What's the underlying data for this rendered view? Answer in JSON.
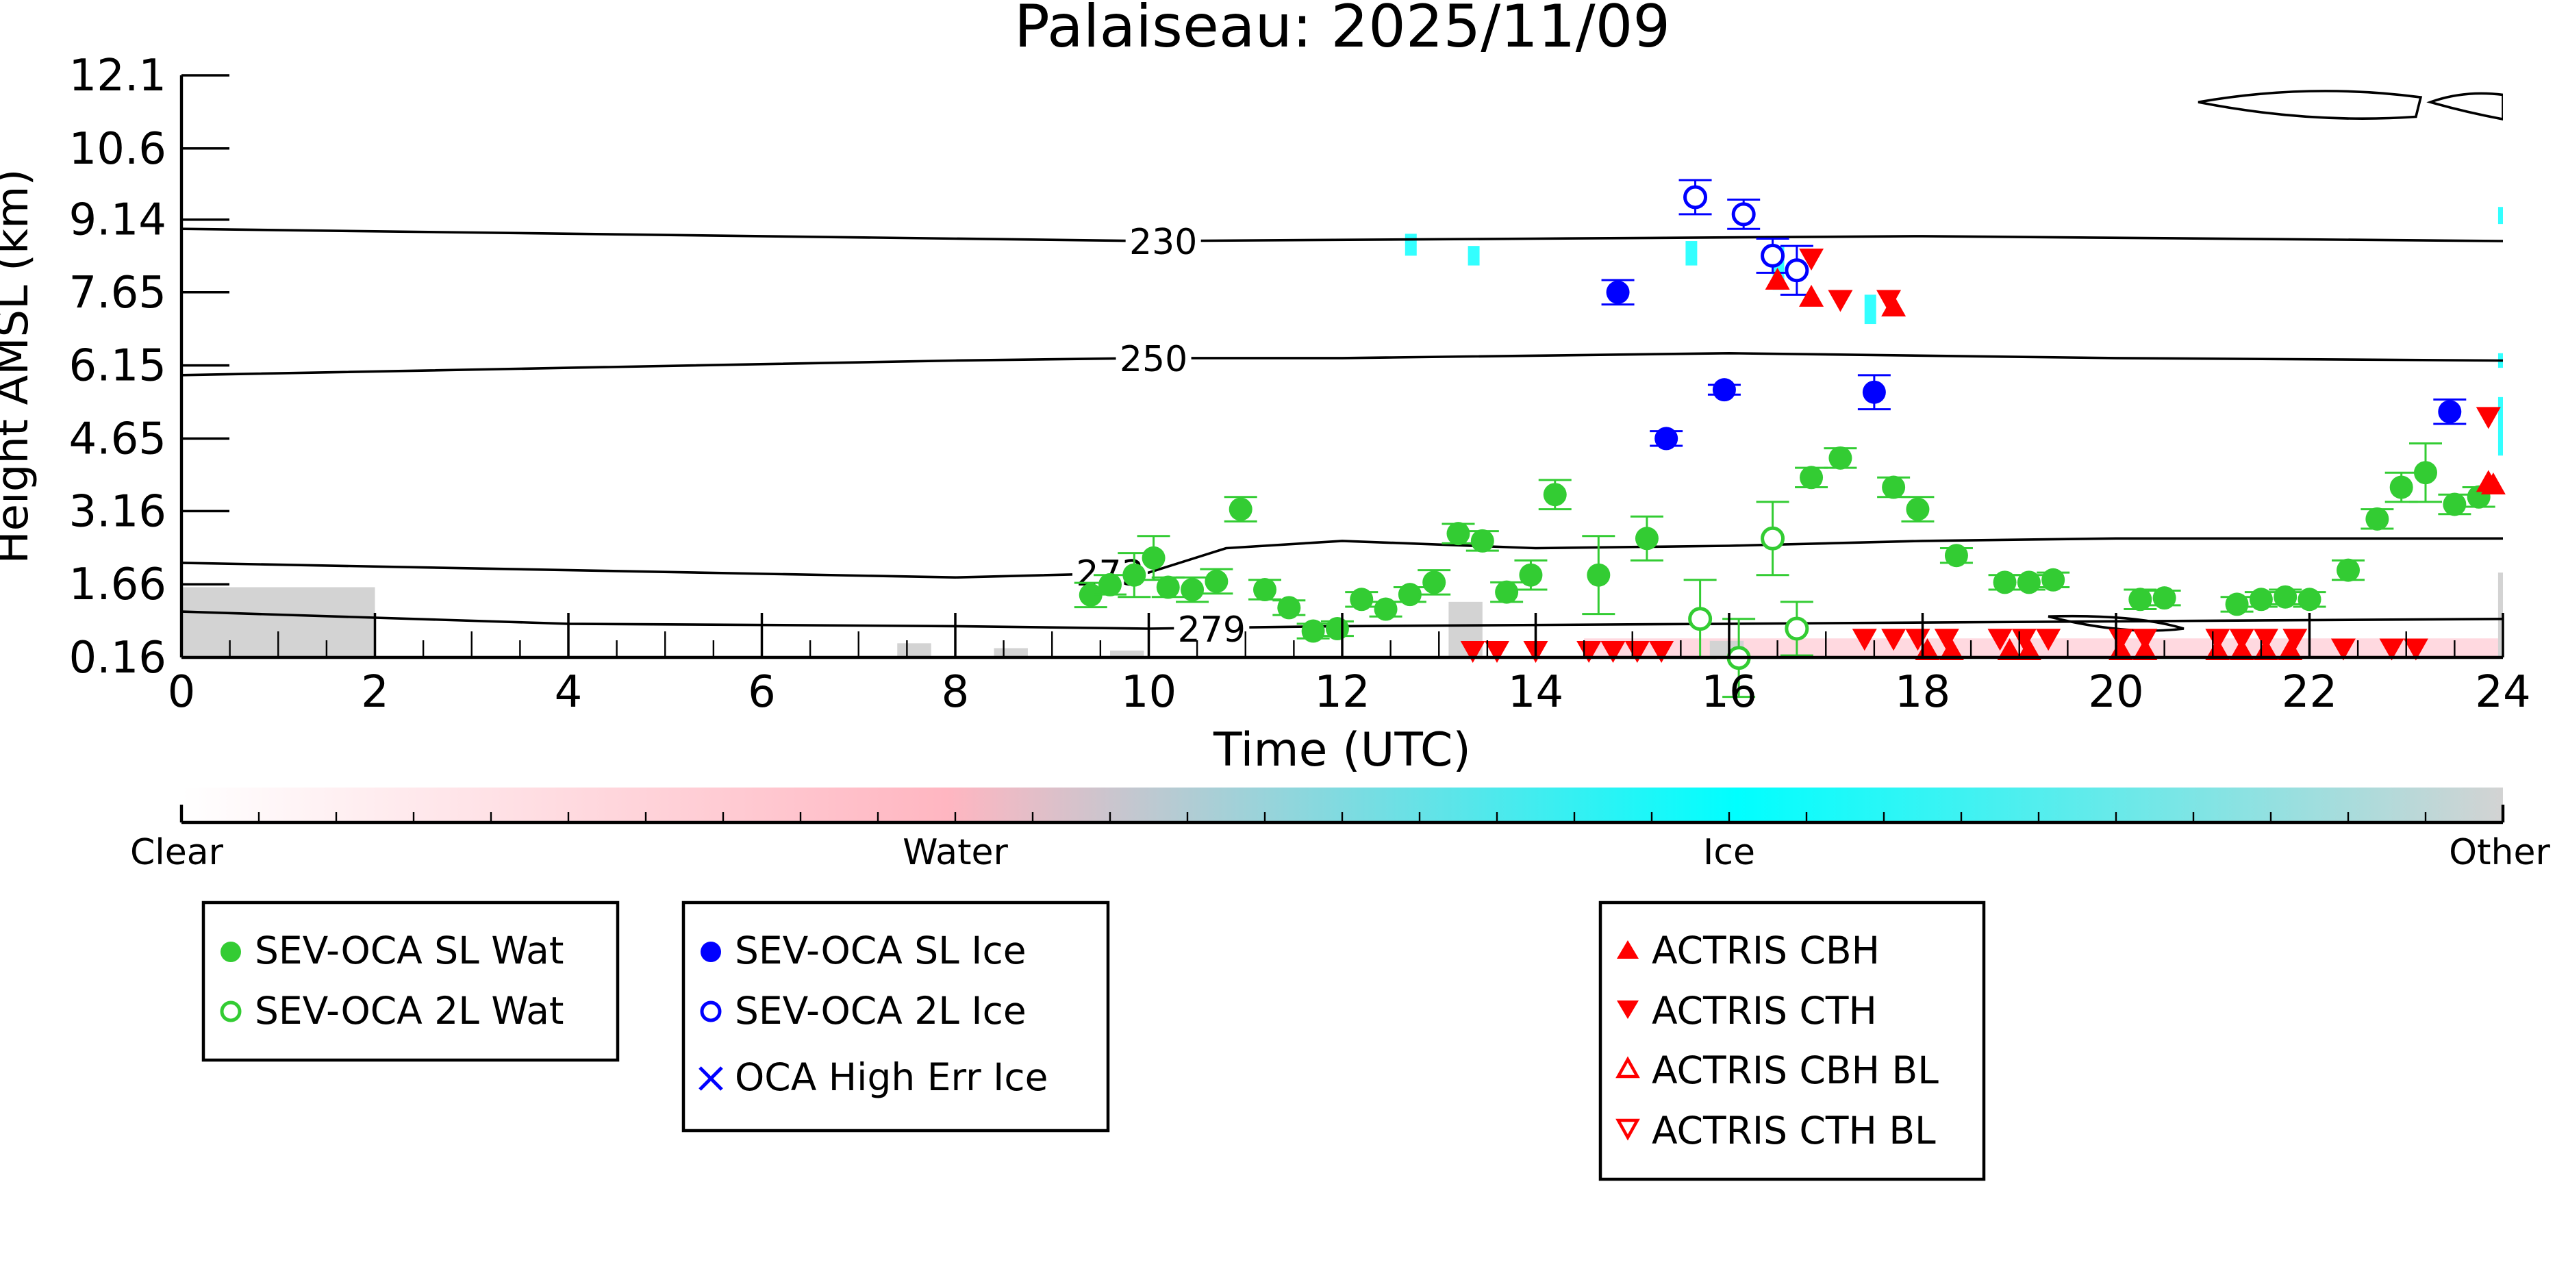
{
  "chart_data": {
    "type": "scatter",
    "title": "Palaiseau: 2025/11/09",
    "xlabel": "Time (UTC)",
    "ylabel": "Height AMSL (km)",
    "xlim": [
      0,
      24
    ],
    "ylim": [
      0.16,
      12.1
    ],
    "x_ticks": [
      "0",
      "2",
      "4",
      "6",
      "8",
      "10",
      "12",
      "14",
      "16",
      "18",
      "20",
      "22",
      "24"
    ],
    "y_ticks": [
      "0.16",
      "1.66",
      "3.16",
      "4.65",
      "6.15",
      "7.65",
      "9.14",
      "10.6",
      "12.1"
    ],
    "colorbar": {
      "labels": [
        "Clear",
        "Water",
        "Ice",
        "Other"
      ],
      "colors": [
        "#ffffff",
        "#ffb6c1",
        "#00ffff",
        "#d3d3d3"
      ]
    },
    "contour_labels": [
      "230",
      "250",
      "273",
      "279"
    ],
    "series": [
      {
        "name": "SEV-OCA SL Wat",
        "color": "#33cc33",
        "marker": "filled-circle",
        "points": [
          [
            9.4,
            1.44,
            0.25
          ],
          [
            9.6,
            1.65,
            0.2
          ],
          [
            9.85,
            1.85,
            0.45
          ],
          [
            10.05,
            2.2,
            0.45
          ],
          [
            10.2,
            1.6,
            0.2
          ],
          [
            10.45,
            1.55,
            0.25
          ],
          [
            10.7,
            1.72,
            0.25
          ],
          [
            10.95,
            3.2,
            0.25
          ],
          [
            11.2,
            1.55,
            0.2
          ],
          [
            11.45,
            1.18,
            0.15
          ],
          [
            11.7,
            0.7,
            0.15
          ],
          [
            11.95,
            0.75,
            0.15
          ],
          [
            12.2,
            1.35,
            0.15
          ],
          [
            12.45,
            1.15,
            0.15
          ],
          [
            12.7,
            1.45,
            0.15
          ],
          [
            12.95,
            1.7,
            0.25
          ],
          [
            13.2,
            2.7,
            0.2
          ],
          [
            13.45,
            2.55,
            0.2
          ],
          [
            13.7,
            1.5,
            0.2
          ],
          [
            13.95,
            1.85,
            0.3
          ],
          [
            14.2,
            3.5,
            0.3
          ],
          [
            14.65,
            1.85,
            0.8
          ],
          [
            15.15,
            2.6,
            0.45
          ],
          [
            16.85,
            3.85,
            0.2
          ],
          [
            17.15,
            4.25,
            0.2
          ],
          [
            17.7,
            3.65,
            0.2
          ],
          [
            17.95,
            3.2,
            0.25
          ],
          [
            18.35,
            2.25,
            0.15
          ],
          [
            18.85,
            1.7,
            0.15
          ],
          [
            19.1,
            1.7,
            0.15
          ],
          [
            19.35,
            1.75,
            0.15
          ],
          [
            20.25,
            1.35,
            0.2
          ],
          [
            20.5,
            1.38,
            0.15
          ],
          [
            21.25,
            1.25,
            0.15
          ],
          [
            21.5,
            1.35,
            0.15
          ],
          [
            21.75,
            1.4,
            0.15
          ],
          [
            22.0,
            1.35,
            0.15
          ],
          [
            22.4,
            1.95,
            0.2
          ],
          [
            22.7,
            3.0,
            0.2
          ],
          [
            22.95,
            3.65,
            0.3
          ],
          [
            23.2,
            3.95,
            0.6
          ],
          [
            23.5,
            3.3,
            0.2
          ],
          [
            23.75,
            3.45,
            0.2
          ]
        ]
      },
      {
        "name": "SEV-OCA 2L Wat",
        "color": "#33cc33",
        "marker": "open-circle",
        "points": [
          [
            15.7,
            0.95,
            0.8
          ],
          [
            16.1,
            0.15,
            0.8
          ],
          [
            16.45,
            2.6,
            0.75
          ],
          [
            16.7,
            0.75,
            0.55
          ]
        ]
      },
      {
        "name": "SEV-OCA SL Ice",
        "color": "#0000ff",
        "marker": "filled-circle",
        "points": [
          [
            14.85,
            7.65,
            0.25
          ],
          [
            15.35,
            4.65,
            0.15
          ],
          [
            15.95,
            5.65,
            0.1
          ],
          [
            17.5,
            5.6,
            0.35
          ],
          [
            23.45,
            5.2,
            0.25
          ]
        ]
      },
      {
        "name": "SEV-OCA 2L Ice",
        "color": "#0000ff",
        "marker": "open-circle",
        "points": [
          [
            15.65,
            9.6,
            0.35
          ],
          [
            16.15,
            9.25,
            0.3
          ],
          [
            16.45,
            8.4,
            0.35
          ],
          [
            16.7,
            8.1,
            0.5
          ]
        ]
      },
      {
        "name": "OCA High Err Ice",
        "color": "#0000ff",
        "marker": "x",
        "points": []
      },
      {
        "name": "ACTRIS CBH",
        "color": "#ff0000",
        "marker": "triangle-up",
        "points": [
          [
            16.5,
            7.9
          ],
          [
            16.85,
            7.55
          ],
          [
            23.9,
            3.7
          ],
          [
            17.7,
            7.35
          ],
          [
            18.05,
            0.3
          ],
          [
            18.3,
            0.3
          ],
          [
            18.9,
            0.3
          ],
          [
            19.1,
            0.3
          ],
          [
            20.05,
            0.3
          ],
          [
            20.3,
            0.3
          ],
          [
            21.05,
            0.3
          ],
          [
            21.3,
            0.3
          ],
          [
            21.55,
            0.3
          ],
          [
            21.8,
            0.3
          ],
          [
            23.85,
            3.75
          ]
        ]
      },
      {
        "name": "ACTRIS CTH",
        "color": "#ff0000",
        "marker": "triangle-down",
        "points": [
          [
            13.35,
            0.3
          ],
          [
            13.6,
            0.3
          ],
          [
            14.0,
            0.3
          ],
          [
            14.55,
            0.3
          ],
          [
            14.8,
            0.3
          ],
          [
            15.05,
            0.3
          ],
          [
            15.3,
            0.3
          ],
          [
            16.85,
            8.35
          ],
          [
            17.15,
            7.5
          ],
          [
            17.65,
            7.5
          ],
          [
            17.4,
            0.55
          ],
          [
            17.7,
            0.55
          ],
          [
            17.95,
            0.55
          ],
          [
            18.25,
            0.55
          ],
          [
            18.8,
            0.55
          ],
          [
            19.05,
            0.55
          ],
          [
            19.3,
            0.55
          ],
          [
            20.05,
            0.55
          ],
          [
            20.3,
            0.55
          ],
          [
            21.05,
            0.55
          ],
          [
            21.3,
            0.55
          ],
          [
            21.55,
            0.55
          ],
          [
            21.85,
            0.55
          ],
          [
            22.35,
            0.35
          ],
          [
            22.85,
            0.35
          ],
          [
            23.1,
            0.35
          ],
          [
            23.85,
            5.1
          ]
        ]
      },
      {
        "name": "ACTRIS CBH BL",
        "color": "#ff0000",
        "marker": "open-triangle-up",
        "points": []
      },
      {
        "name": "ACTRIS CTH BL",
        "color": "#ff0000",
        "marker": "open-triangle-down",
        "points": []
      }
    ],
    "isotherms": [
      {
        "label": "230",
        "points": [
          [
            0,
            8.95
          ],
          [
            6,
            8.8
          ],
          [
            10,
            8.7
          ],
          [
            14,
            8.75
          ],
          [
            18,
            8.8
          ],
          [
            24,
            8.7
          ]
        ]
      },
      {
        "label": "250",
        "points": [
          [
            0,
            5.95
          ],
          [
            4,
            6.1
          ],
          [
            8,
            6.25
          ],
          [
            10,
            6.3
          ],
          [
            12,
            6.3
          ],
          [
            16,
            6.4
          ],
          [
            20,
            6.3
          ],
          [
            24,
            6.25
          ]
        ]
      },
      {
        "label": "273",
        "points": [
          [
            0,
            2.1
          ],
          [
            4,
            1.95
          ],
          [
            8,
            1.8
          ],
          [
            10,
            1.9
          ],
          [
            10.8,
            2.4
          ],
          [
            12,
            2.55
          ],
          [
            14,
            2.4
          ],
          [
            16,
            2.45
          ],
          [
            18,
            2.55
          ],
          [
            20,
            2.6
          ],
          [
            24,
            2.6
          ]
        ]
      },
      {
        "label": "279",
        "points": [
          [
            0,
            1.1
          ],
          [
            4,
            0.85
          ],
          [
            8,
            0.8
          ],
          [
            10,
            0.75
          ],
          [
            12,
            0.8
          ],
          [
            16,
            0.85
          ],
          [
            20,
            0.9
          ],
          [
            24,
            0.95
          ]
        ]
      }
    ],
    "grid": false
  },
  "legend": {
    "group1": [
      "SEV-OCA SL Wat",
      "SEV-OCA 2L Wat"
    ],
    "group2": [
      "SEV-OCA SL Ice",
      "SEV-OCA 2L Ice",
      "OCA High Err Ice"
    ],
    "group3": [
      "ACTRIS CBH",
      "ACTRIS CTH",
      "ACTRIS CBH BL",
      "ACTRIS CTH BL"
    ]
  }
}
